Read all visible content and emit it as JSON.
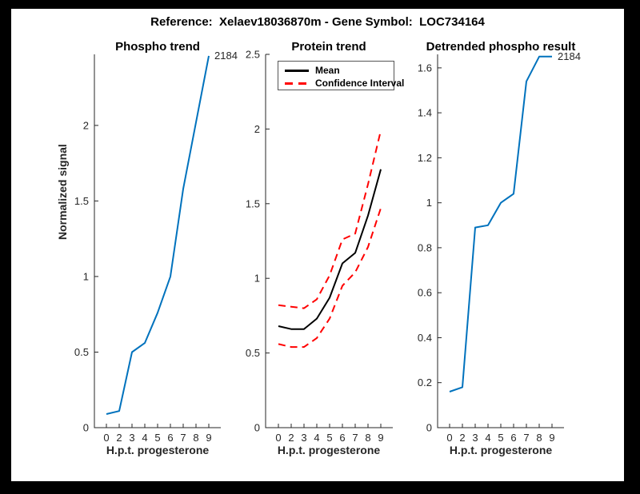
{
  "figure": {
    "title": "Reference:  Xelaev18036870m - Gene Symbol:  LOC734164",
    "background_color": "#000000",
    "canvas_color": "#ffffff",
    "axis_color": "#262626"
  },
  "legend": {
    "position": "top-left-of-protein-trend",
    "items": [
      {
        "label": "Mean",
        "style": "solid",
        "color": "#000000"
      },
      {
        "label": "Confidence Interval",
        "style": "dashed",
        "color": "#FF0000"
      }
    ]
  },
  "chart_data": [
    {
      "type": "line",
      "title": "Phospho trend",
      "xlabel": "H.p.t. progesterone",
      "ylabel": "Normalized signal",
      "categories": [
        "0",
        "2",
        "3",
        "4",
        "5",
        "6",
        "7",
        "8",
        "9"
      ],
      "yticks": [
        "0",
        "0.5",
        "1",
        "1.5",
        "2"
      ],
      "ylim": [
        0,
        2.47
      ],
      "grid": false,
      "annotation": "2184",
      "series": [
        {
          "name": "phospho-signal",
          "color": "#0072BD",
          "style": "solid",
          "values": [
            0.09,
            0.11,
            0.5,
            0.56,
            0.76,
            1.0,
            1.58,
            2.02,
            2.46
          ]
        }
      ]
    },
    {
      "type": "line",
      "title": "Protein trend",
      "xlabel": "H.p.t. progesterone",
      "ylabel": "",
      "categories": [
        "0",
        "2",
        "3",
        "4",
        "5",
        "6",
        "7",
        "8",
        "9"
      ],
      "yticks": [
        "0",
        "0.5",
        "1",
        "1.5",
        "2",
        "2.5"
      ],
      "ylim": [
        0,
        2.5
      ],
      "grid": false,
      "annotation": "",
      "series": [
        {
          "name": "Mean",
          "color": "#000000",
          "style": "solid",
          "values": [
            0.68,
            0.66,
            0.66,
            0.73,
            0.87,
            1.1,
            1.17,
            1.42,
            1.73
          ]
        },
        {
          "name": "Confidence Interval upper",
          "color": "#FF0000",
          "style": "dashed",
          "values": [
            0.82,
            0.81,
            0.8,
            0.86,
            1.02,
            1.26,
            1.3,
            1.63,
            1.99
          ]
        },
        {
          "name": "Confidence Interval lower",
          "color": "#FF0000",
          "style": "dashed",
          "values": [
            0.56,
            0.54,
            0.54,
            0.6,
            0.73,
            0.95,
            1.04,
            1.21,
            1.47
          ]
        }
      ]
    },
    {
      "type": "line",
      "title": "Detrended phospho result",
      "xlabel": "H.p.t. progesterone",
      "ylabel": "",
      "categories": [
        "0",
        "2",
        "3",
        "4",
        "5",
        "6",
        "7",
        "8",
        "9"
      ],
      "yticks": [
        "0",
        "0.2",
        "0.4",
        "0.6",
        "0.8",
        "1",
        "1.2",
        "1.4",
        "1.6"
      ],
      "ylim": [
        0,
        1.66
      ],
      "grid": false,
      "annotation": "2184",
      "series": [
        {
          "name": "detrended-phospho-signal",
          "color": "#0072BD",
          "style": "solid",
          "values": [
            0.16,
            0.18,
            0.89,
            0.9,
            1.0,
            1.04,
            1.54,
            1.65,
            1.65
          ]
        }
      ]
    }
  ]
}
